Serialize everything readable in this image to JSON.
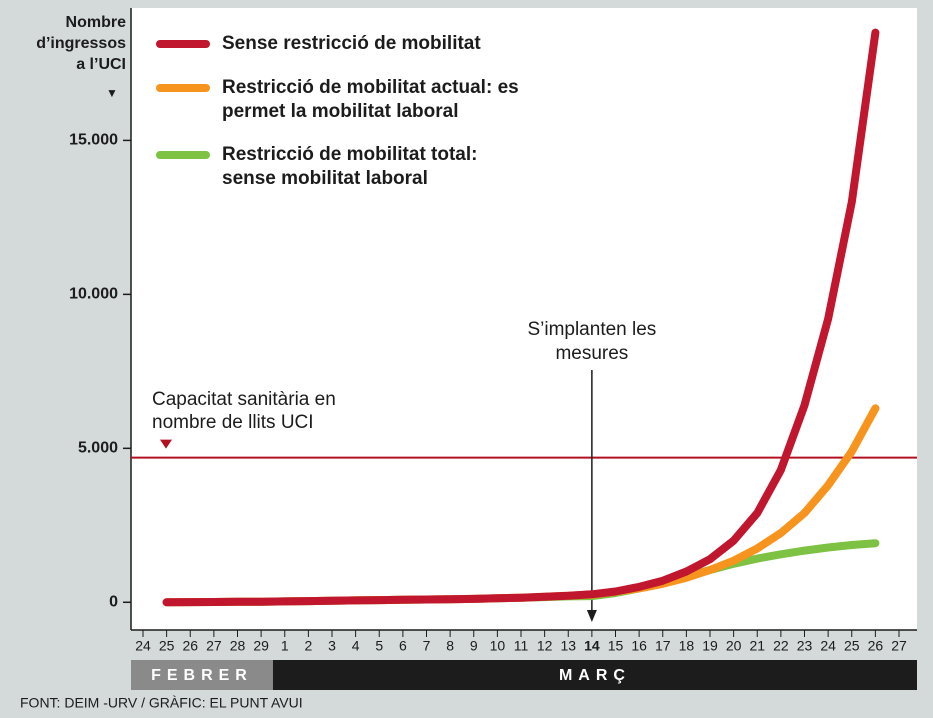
{
  "chart_data": {
    "type": "line",
    "y_label": "Nombre d’ingressos a l’UCI",
    "categories": [
      "24",
      "25",
      "26",
      "27",
      "28",
      "29",
      "1",
      "2",
      "3",
      "4",
      "5",
      "6",
      "7",
      "8",
      "9",
      "10",
      "11",
      "12",
      "13",
      "14",
      "15",
      "16",
      "17",
      "18",
      "19",
      "20",
      "21",
      "22",
      "23",
      "24",
      "25",
      "26",
      "27"
    ],
    "highlight_category": 19,
    "months": [
      {
        "label": "FEBRER",
        "from": 0,
        "to": 5,
        "color": "#8a8a8a"
      },
      {
        "label": "MARÇ",
        "from": 6,
        "to": 32,
        "color": "#1c1c1c"
      }
    ],
    "series": [
      {
        "name": "Sense restricció de mobilitat",
        "color": "#c0172f",
        "values": [
          null,
          0,
          5,
          10,
          15,
          20,
          30,
          40,
          50,
          60,
          70,
          80,
          90,
          100,
          110,
          130,
          150,
          180,
          210,
          260,
          350,
          500,
          700,
          1000,
          1400,
          2000,
          2900,
          4300,
          6400,
          9200,
          13000,
          18500,
          null
        ]
      },
      {
        "name": "Restricció de mobilitat actual: es permet la mobilitat laboral",
        "color": "#f7941d",
        "values": [
          null,
          0,
          5,
          10,
          15,
          20,
          30,
          40,
          50,
          60,
          70,
          80,
          90,
          100,
          110,
          130,
          150,
          180,
          210,
          250,
          340,
          450,
          600,
          800,
          1050,
          1350,
          1750,
          2250,
          2900,
          3800,
          4900,
          6300,
          null
        ]
      },
      {
        "name": "Restricció de mobilitat total: sense mobilitat laboral",
        "color": "#7dc242",
        "values": [
          null,
          0,
          5,
          10,
          15,
          20,
          30,
          40,
          50,
          60,
          70,
          80,
          90,
          100,
          110,
          130,
          150,
          170,
          190,
          200,
          300,
          450,
          650,
          850,
          1050,
          1250,
          1420,
          1560,
          1680,
          1780,
          1860,
          1920,
          null
        ]
      }
    ],
    "capacity": {
      "value": 4700,
      "label": "Capacitat sanitària en nombre de llits UCI",
      "color": "#b01020"
    },
    "event": {
      "index": 19,
      "label": "S’implanten les mesures"
    },
    "ylim": [
      -900,
      19300
    ],
    "yticks": [
      0,
      {
        "value": 5000,
        "label": "5.000"
      },
      {
        "value": 10000,
        "label": "10.000"
      },
      {
        "value": 15000,
        "label": "15.000"
      }
    ],
    "source": "FONT: DEIM -URV / GRÀFIC: EL PUNT AVUI"
  }
}
